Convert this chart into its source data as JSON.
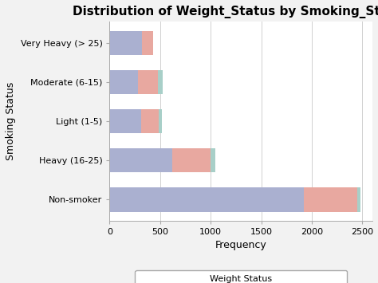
{
  "title": "Distribution of Weight_Status by Smoking_Status",
  "xlabel": "Frequency",
  "ylabel": "Smoking Status",
  "categories": [
    "Non-smoker",
    "Heavy (16-25)",
    "Light (1-5)",
    "Moderate (6-15)",
    "Very Heavy (> 25)"
  ],
  "overweight": [
    1920,
    620,
    310,
    280,
    320
  ],
  "normal": [
    530,
    380,
    175,
    200,
    110
  ],
  "underweight": [
    35,
    45,
    30,
    45,
    0
  ],
  "colors": {
    "overweight": "#aab0d0",
    "normal": "#e8a8a0",
    "underweight": "#a8cfc8"
  },
  "xlim": [
    0,
    2600
  ],
  "xticks": [
    0,
    500,
    1000,
    1500,
    2000,
    2500
  ],
  "legend_title": "Weight Status",
  "bg_color": "#f2f2f2",
  "plot_bg_color": "#ffffff",
  "title_fontsize": 11,
  "axis_fontsize": 9,
  "tick_fontsize": 8,
  "legend_fontsize": 8
}
